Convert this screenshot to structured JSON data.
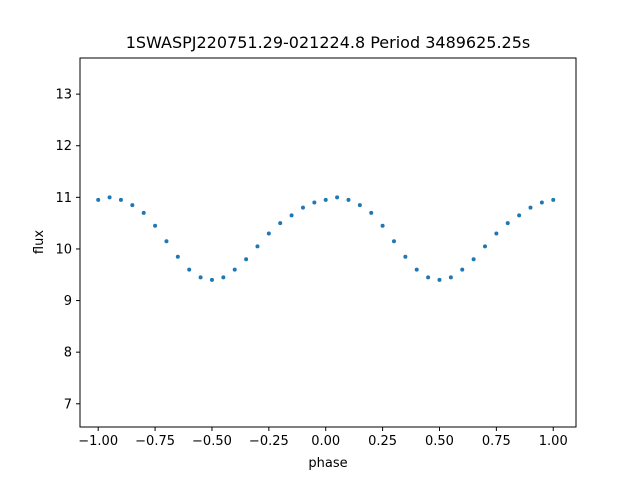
{
  "chart_data": {
    "type": "scatter",
    "title": "1SWASPJ220751.29-021224.8 Period 3489625.25s",
    "xlabel": "phase",
    "ylabel": "flux",
    "xlim": [
      -1.08,
      1.1
    ],
    "ylim": [
      6.55,
      13.7
    ],
    "x_ticks": [
      -1.0,
      -0.75,
      -0.5,
      -0.25,
      0.0,
      0.25,
      0.5,
      0.75,
      1.0
    ],
    "x_tick_labels": [
      "−1.00",
      "−0.75",
      "−0.50",
      "−0.25",
      "0.00",
      "0.25",
      "0.50",
      "0.75",
      "1.00"
    ],
    "y_ticks": [
      7,
      8,
      9,
      10,
      11,
      12,
      13
    ],
    "y_tick_labels": [
      "7",
      "8",
      "9",
      "10",
      "11",
      "12",
      "13"
    ],
    "grid": false,
    "legend": "none",
    "marker_color": "#1f77b4",
    "series": [
      {
        "x": [
          -1.0,
          -0.95,
          -0.9,
          -0.85,
          -0.8,
          -0.75,
          -0.7,
          -0.65,
          -0.6,
          -0.55,
          -0.5,
          -0.45,
          -0.4,
          -0.35,
          -0.3,
          -0.25,
          -0.2,
          -0.15,
          -0.1,
          -0.05,
          0.0,
          0.05,
          0.1,
          0.15,
          0.2,
          0.25,
          0.3,
          0.35,
          0.4,
          0.45,
          0.5,
          0.55,
          0.6,
          0.65,
          0.7,
          0.75,
          0.8,
          0.85,
          0.9,
          0.95,
          1.0
        ],
        "y": [
          10.95,
          11.0,
          10.95,
          10.85,
          10.7,
          10.45,
          10.15,
          9.85,
          9.6,
          9.45,
          9.4,
          9.45,
          9.6,
          9.8,
          10.05,
          10.3,
          10.5,
          10.65,
          10.8,
          10.9,
          10.95,
          11.0,
          10.95,
          10.85,
          10.7,
          10.45,
          10.15,
          9.85,
          9.6,
          9.45,
          9.4,
          9.45,
          9.6,
          9.8,
          10.05,
          10.3,
          10.5,
          10.65,
          10.8,
          10.9,
          10.95
        ]
      }
    ]
  }
}
